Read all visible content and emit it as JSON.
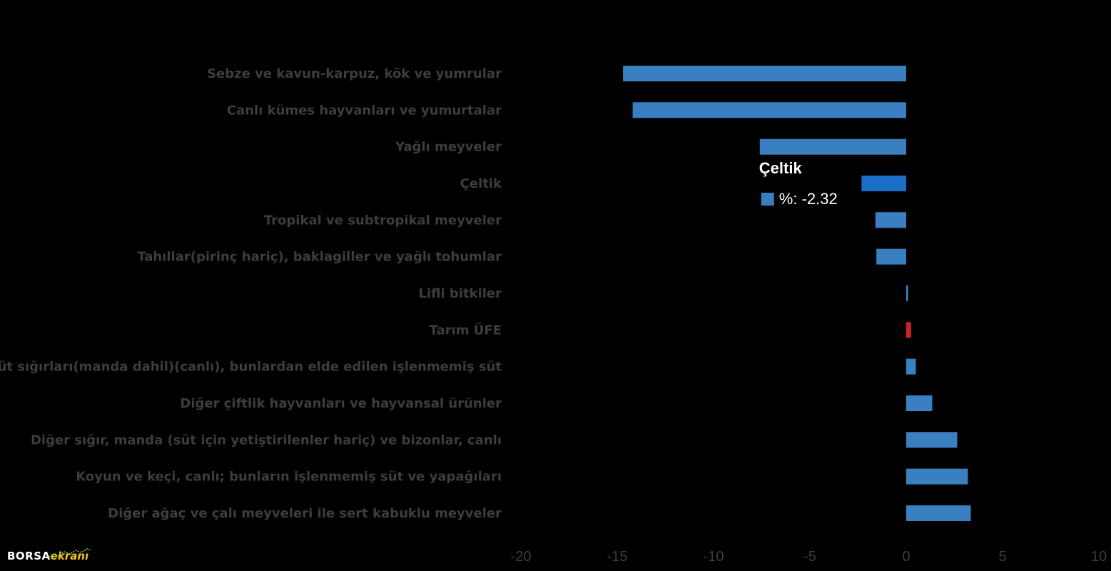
{
  "chart_data": {
    "type": "bar",
    "orientation": "horizontal",
    "categories": [
      "Sebze ve kavun-karpuz, kök ve yumrular",
      "Canlı kümes hayvanları ve yumurtalar",
      "Yağlı meyveler",
      "Çeltik",
      "Tropikal ve subtropikal meyveler",
      "Tahıllar(pirinç hariç), baklagiller ve yağlı tohumlar",
      "Lifli bitkiler",
      "Tarım ÜFE",
      "Süt sığırları(manda dahil)(canlı), bunlardan elde edilen işlenmemiş süt",
      "Diğer çiftlik hayvanları ve hayvansal ürünler",
      "Diğer sığır, manda (süt için yetiştirilenler hariç) ve bizonlar, canlı",
      "Koyun ve keçi, canlı; bunların işlenmemiş süt ve yapağıları",
      "Diğer ağaç ve çalı meyveleri ile sert kabuklu meyveler"
    ],
    "series": [
      {
        "values": [
          -14.7,
          -14.2,
          -7.6,
          -2.32,
          -1.6,
          -1.55,
          0.1,
          0.25,
          0.5,
          1.35,
          2.65,
          3.2,
          3.35
        ]
      }
    ],
    "highlight_category": "Tarım ÜFE",
    "hovered_category": "Çeltik",
    "x_ticks": [
      -20,
      -15,
      -10,
      -5,
      0,
      5,
      10
    ],
    "tick_labels": [
      "-20",
      "-15",
      "-10",
      "-5",
      "0",
      "5",
      "10"
    ],
    "xlim": [
      -20,
      10
    ],
    "grid": false,
    "legend": "none",
    "colors": {
      "bar": "#3a7fc0",
      "hovered_bar": "#1a6fc6",
      "highlight_bar": "#cc2127",
      "label": "#3d3d3d",
      "background": "#000000"
    },
    "tooltip": {
      "title": "Çeltik",
      "value_text": "%: -2.32"
    }
  },
  "brand": {
    "part1": "BORSA",
    "part2": "ekranı"
  }
}
